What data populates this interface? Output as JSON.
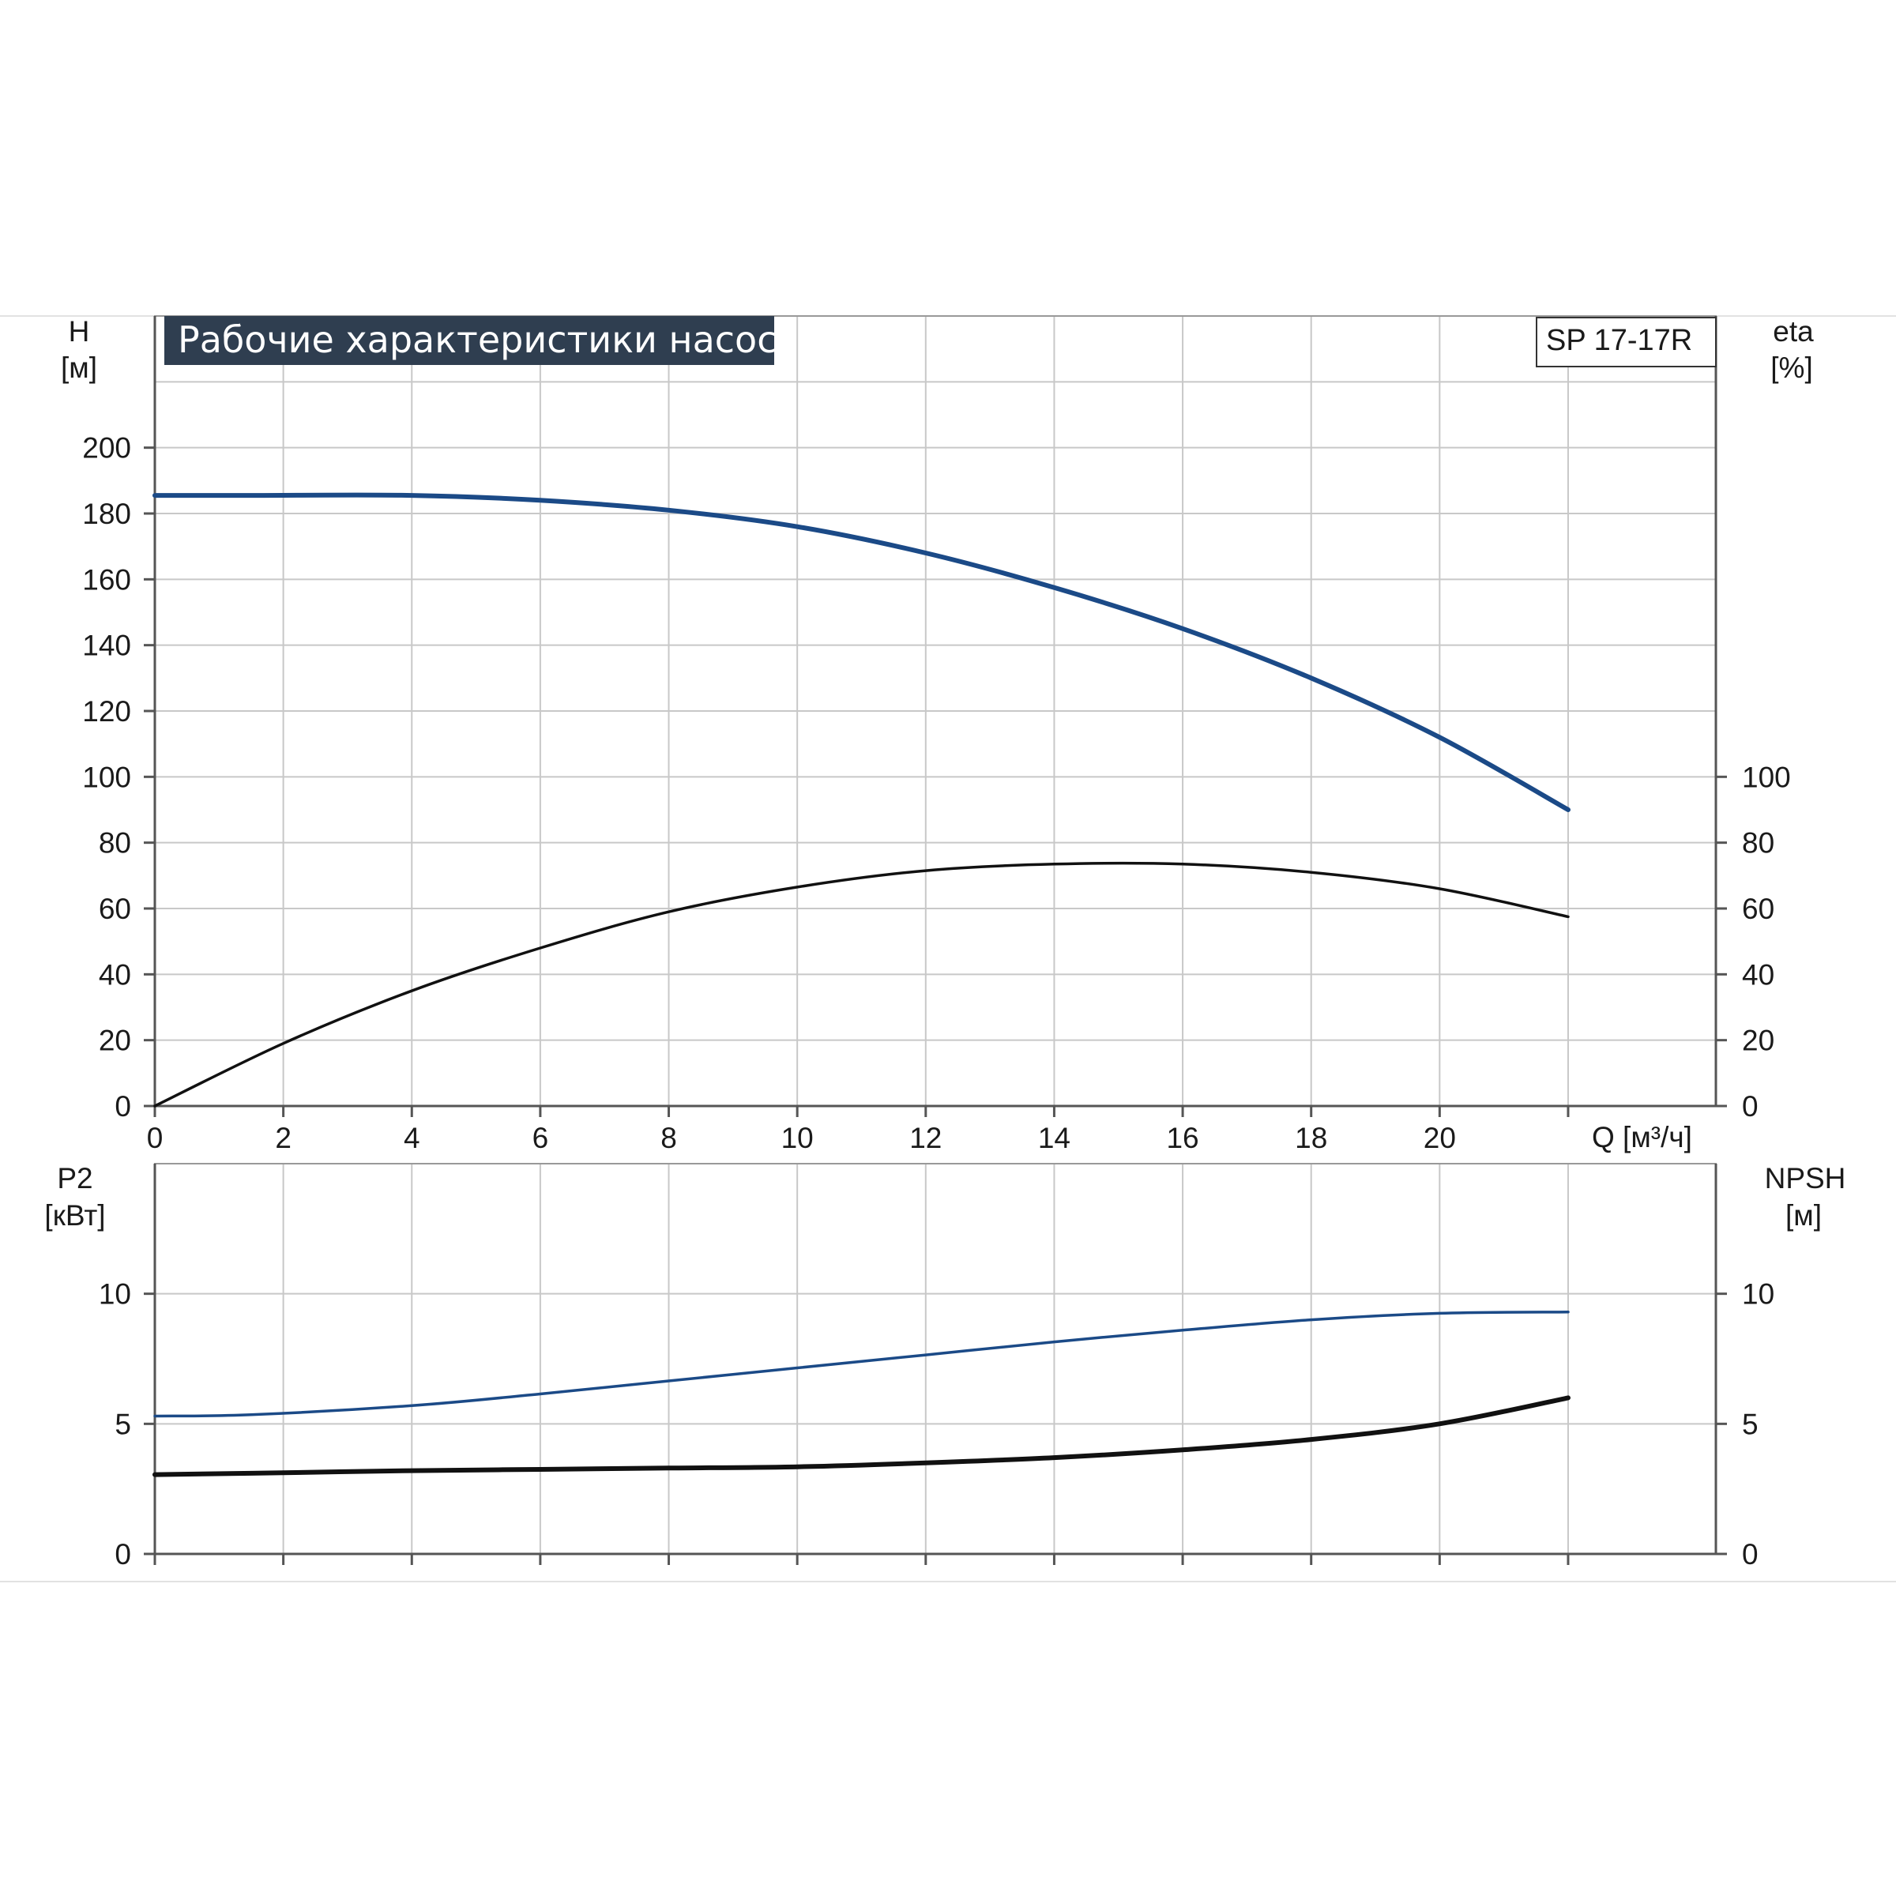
{
  "chart_data": [
    {
      "type": "line",
      "title": "Рабочие характеристики насоса",
      "model": "SP 17-17R",
      "xlabel": "Q [м³/ч]",
      "x_ticks": [
        0,
        2,
        4,
        6,
        8,
        10,
        12,
        14,
        16,
        18,
        20
      ],
      "xlim": [
        0,
        24.3
      ],
      "left_axis": {
        "label": "H",
        "unit": "[м]",
        "ticks": [
          0,
          20,
          40,
          60,
          80,
          100,
          120,
          140,
          160,
          180,
          200
        ],
        "ylim": [
          0,
          240
        ]
      },
      "right_axis": {
        "label": "eta",
        "unit": "[%]",
        "ticks": [
          0,
          20,
          40,
          60,
          80,
          100
        ],
        "ylim": [
          0,
          240
        ]
      },
      "grid": true,
      "series": [
        {
          "axis": "left",
          "color": "#1b4a87",
          "x": [
            0,
            1.5,
            4,
            6,
            8,
            10,
            12,
            14,
            16,
            18,
            20,
            22
          ],
          "y": [
            185.5,
            185.5,
            185.5,
            184,
            181,
            176,
            168,
            157.5,
            145,
            130,
            112,
            90
          ]
        },
        {
          "axis": "right",
          "color": "#111111",
          "x": [
            0,
            2,
            4,
            6,
            8,
            10,
            12,
            14,
            16,
            18,
            20,
            22
          ],
          "y": [
            0,
            19,
            35,
            48,
            59,
            66.5,
            71.5,
            73.5,
            73.5,
            71,
            66,
            57.5
          ]
        }
      ]
    },
    {
      "type": "line",
      "x_ticks": [
        0,
        2,
        4,
        6,
        8,
        10,
        12,
        14,
        16,
        18,
        20
      ],
      "xlim": [
        0,
        24.3
      ],
      "left_axis": {
        "label": "P2",
        "unit": "[кВт]",
        "ticks": [
          0,
          5,
          10
        ],
        "ylim": [
          0,
          15
        ]
      },
      "right_axis": {
        "label": "NPSH",
        "unit": "[м]",
        "ticks": [
          0,
          5,
          10
        ],
        "ylim": [
          0,
          15
        ]
      },
      "grid": true,
      "series": [
        {
          "axis": "left",
          "color": "#1b4a87",
          "x": [
            0,
            1.5,
            4,
            6,
            8,
            10,
            12,
            14,
            16,
            18,
            20,
            22
          ],
          "y": [
            5.3,
            5.35,
            5.7,
            6.15,
            6.65,
            7.15,
            7.65,
            8.15,
            8.6,
            9.0,
            9.25,
            9.3
          ]
        },
        {
          "axis": "right",
          "color": "#111111",
          "x": [
            0,
            1.5,
            4,
            6,
            8,
            10,
            12,
            14,
            16,
            18,
            20,
            22
          ],
          "y": [
            3.05,
            3.1,
            3.2,
            3.25,
            3.3,
            3.35,
            3.5,
            3.7,
            4.0,
            4.4,
            5.0,
            6.0
          ]
        }
      ]
    }
  ]
}
